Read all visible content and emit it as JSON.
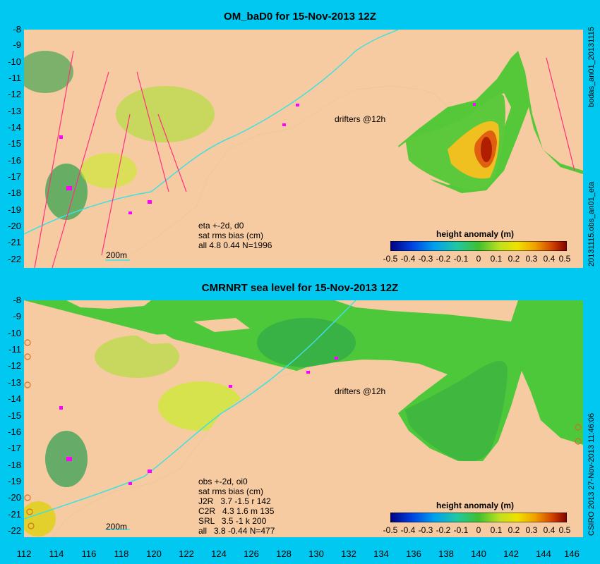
{
  "panels": [
    {
      "title": "OM_baD0 for 15-Nov-2013 12Z",
      "stats": [
        "eta +-2d, d0",
        "sat rms bias (cm)",
        "all 4.8 0.44 N=1996"
      ],
      "drifters": "drifters @12h",
      "scale": "200m",
      "colorbar_title": "height anomaly (m)",
      "side_label": "20131115.obs_an01_eta",
      "side_label_top": "bodas_an01_20131115"
    },
    {
      "title": "CMRNRT sea level  for 15-Nov-2013 12Z",
      "stats": [
        "obs +-2d, oi0",
        "sat rms bias (cm)",
        "J2R   3.7 -1.5 r 142",
        "C2R   4.3 1.6 m 135",
        "SRL   3.5 -1 k 200",
        "all   3.8 -0.44 N=477"
      ],
      "drifters": "drifters @12h",
      "scale": "200m",
      "colorbar_title": "height anomaly (m)",
      "side_label": "CSIRO 2013  27-Nov-2013 11:46:06"
    }
  ],
  "y_ticks": [
    "-8",
    "-9",
    "-10",
    "-11",
    "-12",
    "-13",
    "-14",
    "-15",
    "-16",
    "-17",
    "-18",
    "-19",
    "-20",
    "-21",
    "-22"
  ],
  "x_ticks": [
    "112",
    "114",
    "116",
    "118",
    "120",
    "122",
    "124",
    "126",
    "128",
    "130",
    "132",
    "134",
    "136",
    "138",
    "140",
    "142",
    "144",
    "146"
  ],
  "colorbar_ticks": [
    "-0.5",
    "-0.4",
    "-0.3",
    "-0.2",
    "-0.1",
    "0",
    "0.1",
    "0.2",
    "0.3",
    "0.4",
    "0.5"
  ],
  "colors": {
    "background": "#00c8f0",
    "land": "#f7cba1",
    "ocean": "#4cc83a",
    "accent": "#ff00ff"
  }
}
